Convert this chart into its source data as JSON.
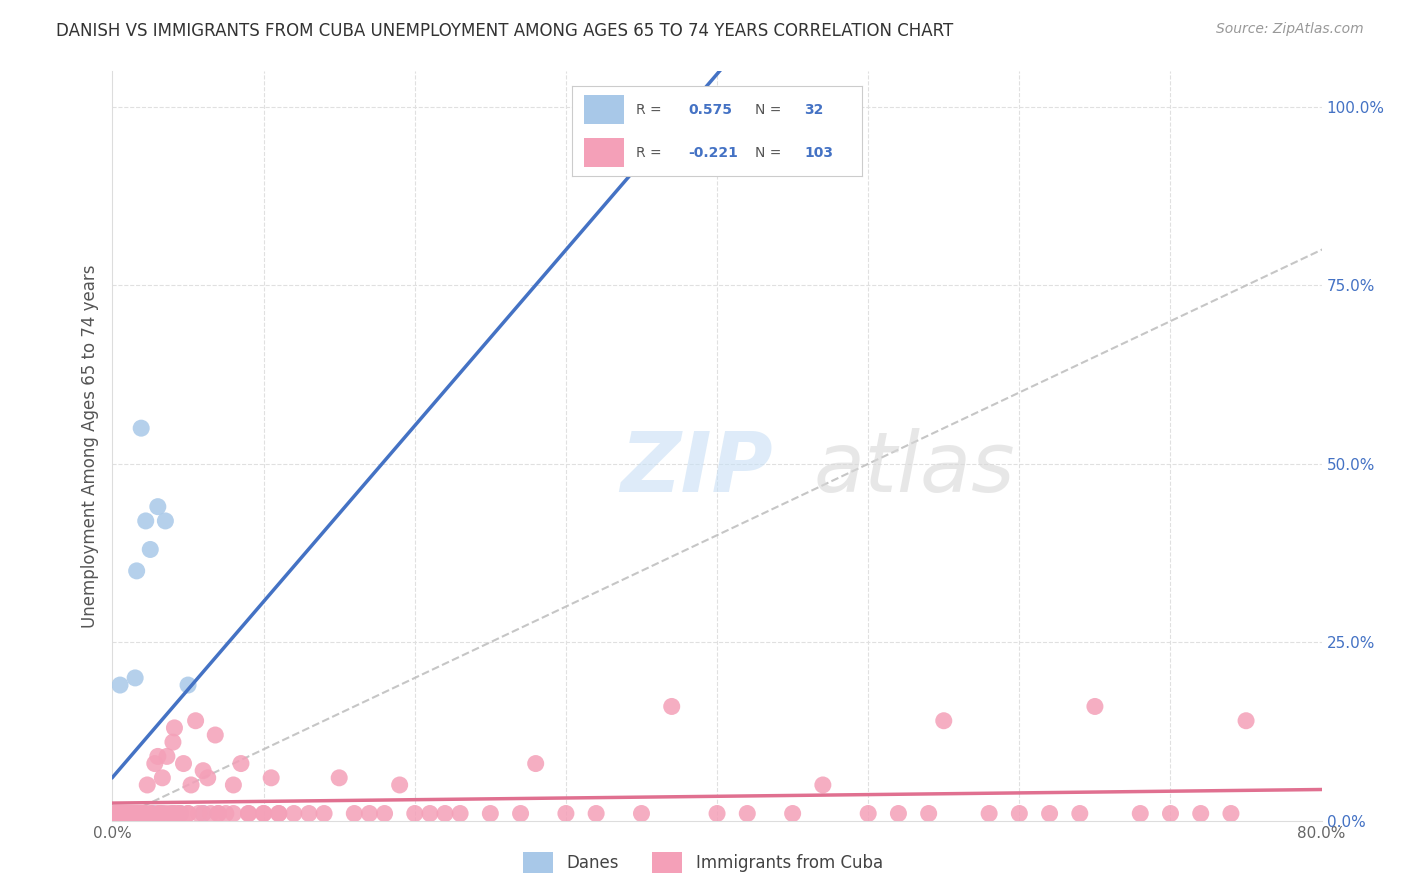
{
  "title": "DANISH VS IMMIGRANTS FROM CUBA UNEMPLOYMENT AMONG AGES 65 TO 74 YEARS CORRELATION CHART",
  "source": "Source: ZipAtlas.com",
  "ylabel": "Unemployment Among Ages 65 to 74 years",
  "xlim": [
    0.0,
    0.8
  ],
  "ylim": [
    0.0,
    1.05
  ],
  "danes_R": 0.575,
  "danes_N": 32,
  "cuba_R": -0.221,
  "cuba_N": 103,
  "danes_color": "#a8c8e8",
  "cuba_color": "#f4a0b8",
  "danes_line_color": "#4472c4",
  "cuba_line_color": "#e07090",
  "diagonal_color": "#c0c0c0",
  "background_color": "#ffffff",
  "text_color": "#4472c4",
  "label_color": "#666666",
  "grid_color": "#e0e0e0",
  "title_color": "#333333",
  "watermark_color": "#ddeeff",
  "danes_scatter_x": [
    0.002,
    0.003,
    0.004,
    0.005,
    0.005,
    0.006,
    0.007,
    0.008,
    0.009,
    0.01,
    0.011,
    0.012,
    0.013,
    0.014,
    0.015,
    0.016,
    0.017,
    0.018,
    0.019,
    0.02,
    0.021,
    0.022,
    0.025,
    0.027,
    0.03,
    0.033,
    0.035,
    0.04,
    0.045,
    0.05,
    0.06,
    0.38
  ],
  "danes_scatter_y": [
    0.01,
    0.01,
    0.01,
    0.01,
    0.19,
    0.01,
    0.01,
    0.01,
    0.01,
    0.01,
    0.01,
    0.01,
    0.01,
    0.01,
    0.2,
    0.35,
    0.01,
    0.01,
    0.55,
    0.01,
    0.01,
    0.42,
    0.38,
    0.01,
    0.44,
    0.01,
    0.42,
    0.01,
    0.01,
    0.19,
    0.01,
    1.0
  ],
  "cuba_scatter_x": [
    0.001,
    0.002,
    0.003,
    0.004,
    0.005,
    0.005,
    0.006,
    0.007,
    0.008,
    0.009,
    0.01,
    0.011,
    0.012,
    0.013,
    0.014,
    0.015,
    0.016,
    0.017,
    0.018,
    0.019,
    0.02,
    0.021,
    0.022,
    0.023,
    0.025,
    0.026,
    0.028,
    0.03,
    0.031,
    0.032,
    0.033,
    0.035,
    0.036,
    0.038,
    0.04,
    0.041,
    0.042,
    0.044,
    0.045,
    0.047,
    0.05,
    0.052,
    0.055,
    0.057,
    0.06,
    0.063,
    0.065,
    0.068,
    0.07,
    0.075,
    0.08,
    0.085,
    0.09,
    0.1,
    0.105,
    0.11,
    0.12,
    0.13,
    0.14,
    0.15,
    0.16,
    0.17,
    0.18,
    0.19,
    0.2,
    0.21,
    0.22,
    0.23,
    0.25,
    0.27,
    0.28,
    0.3,
    0.32,
    0.35,
    0.37,
    0.4,
    0.42,
    0.45,
    0.47,
    0.5,
    0.52,
    0.54,
    0.55,
    0.58,
    0.6,
    0.62,
    0.64,
    0.65,
    0.68,
    0.7,
    0.72,
    0.74,
    0.75,
    0.02,
    0.03,
    0.04,
    0.05,
    0.06,
    0.07,
    0.08,
    0.09,
    0.1,
    0.11
  ],
  "cuba_scatter_y": [
    0.01,
    0.01,
    0.01,
    0.01,
    0.01,
    0.01,
    0.01,
    0.01,
    0.01,
    0.01,
    0.01,
    0.01,
    0.01,
    0.01,
    0.01,
    0.01,
    0.01,
    0.01,
    0.01,
    0.01,
    0.01,
    0.01,
    0.01,
    0.05,
    0.01,
    0.01,
    0.08,
    0.01,
    0.01,
    0.01,
    0.06,
    0.01,
    0.09,
    0.01,
    0.01,
    0.13,
    0.01,
    0.01,
    0.01,
    0.08,
    0.01,
    0.05,
    0.14,
    0.01,
    0.01,
    0.06,
    0.01,
    0.12,
    0.01,
    0.01,
    0.01,
    0.08,
    0.01,
    0.01,
    0.06,
    0.01,
    0.01,
    0.01,
    0.01,
    0.06,
    0.01,
    0.01,
    0.01,
    0.05,
    0.01,
    0.01,
    0.01,
    0.01,
    0.01,
    0.01,
    0.08,
    0.01,
    0.01,
    0.01,
    0.16,
    0.01,
    0.01,
    0.01,
    0.05,
    0.01,
    0.01,
    0.01,
    0.14,
    0.01,
    0.01,
    0.01,
    0.01,
    0.16,
    0.01,
    0.01,
    0.01,
    0.01,
    0.14,
    0.01,
    0.09,
    0.11,
    0.01,
    0.07,
    0.01,
    0.05,
    0.01,
    0.01,
    0.01
  ]
}
